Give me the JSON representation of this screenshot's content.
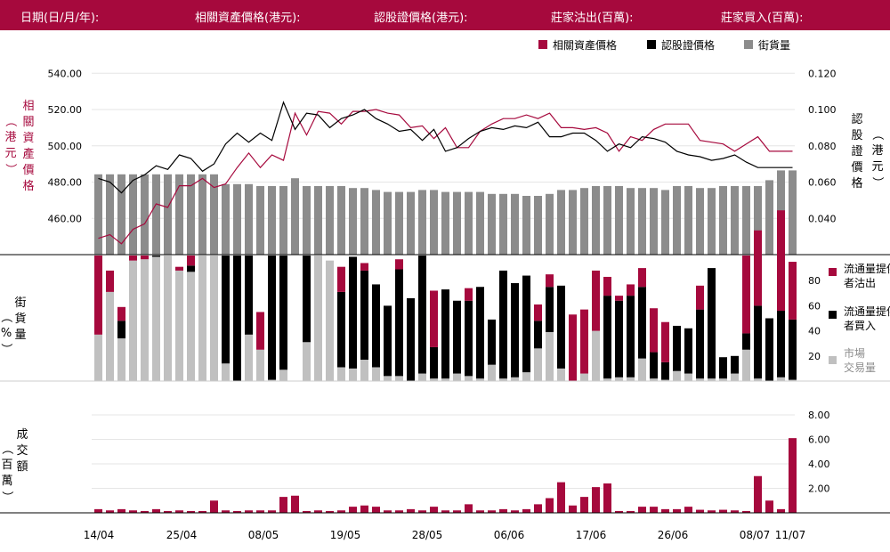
{
  "header": {
    "date_label": "日期(日/月/年):",
    "underlying_label": "相關資產價格(港元):",
    "warrant_label": "認股證價格(港元):",
    "sell_label": "莊家沽出(百萬):",
    "buy_label": "莊家買入(百萬):"
  },
  "colors": {
    "brand": "#a6093d",
    "underlying": "#a6093d",
    "warrant": "#000000",
    "outstanding": "#8c8c8c",
    "sell": "#a6093d",
    "buy": "#000000",
    "market": "#c0c0c0",
    "turnover": "#a6093d"
  },
  "legend": {
    "underlying": "相關資產價格",
    "warrant": "認股證價格",
    "outstanding": "街貨量",
    "sell": "流通量提供者沽出",
    "buy": "流通量提供者買入",
    "market": "市場交易量"
  },
  "axes": {
    "left_price_title": "相關資產價格（港元）",
    "right_price_title": "認股證價格（港元）",
    "outstanding_title": "街貨量（%）",
    "turnover_title": "成交額（百萬）"
  },
  "chart_data": {
    "type": "line",
    "x_tick_labels": [
      "14/04",
      "25/04",
      "08/05",
      "19/05",
      "28/05",
      "06/06",
      "17/06",
      "26/06",
      "08/07",
      "11/07"
    ],
    "underlying": {
      "name": "相關資產價格",
      "ylim": [
        440,
        548
      ],
      "ticks": [
        "540.00",
        "520.00",
        "500.00",
        "480.00",
        "460.00"
      ],
      "values": [
        449,
        451,
        446,
        454,
        457,
        468,
        466,
        478,
        478,
        482,
        477,
        479,
        488,
        496,
        488,
        495,
        492,
        518,
        506,
        519,
        518,
        512,
        519,
        519,
        520,
        518,
        517,
        510,
        511,
        504,
        510,
        499,
        499,
        508,
        512,
        515,
        515,
        517,
        515,
        518,
        510,
        510,
        509,
        510,
        507,
        497,
        505,
        503,
        509,
        512,
        512,
        512,
        503,
        502,
        501,
        497,
        501,
        505,
        497,
        497,
        497
      ]
    },
    "warrant": {
      "name": "認股證價格",
      "ylim": [
        0.02,
        0.128
      ],
      "ticks": [
        "0.120",
        "0.100",
        "0.080",
        "0.060",
        "0.040"
      ],
      "values": [
        0.062,
        0.06,
        0.054,
        0.061,
        0.064,
        0.069,
        0.067,
        0.075,
        0.073,
        0.066,
        0.07,
        0.081,
        0.087,
        0.082,
        0.087,
        0.083,
        0.104,
        0.089,
        0.098,
        0.097,
        0.09,
        0.095,
        0.097,
        0.1,
        0.095,
        0.092,
        0.088,
        0.089,
        0.083,
        0.089,
        0.077,
        0.079,
        0.084,
        0.088,
        0.09,
        0.089,
        0.091,
        0.09,
        0.093,
        0.085,
        0.085,
        0.087,
        0.087,
        0.083,
        0.077,
        0.081,
        0.079,
        0.085,
        0.084,
        0.082,
        0.077,
        0.075,
        0.074,
        0.072,
        0.073,
        0.075,
        0.071,
        0.068,
        0.068,
        0.068,
        0.068
      ]
    },
    "outstanding": {
      "name": "街貨量",
      "ylim": [
        0,
        100
      ],
      "values": [
        41,
        41,
        41,
        41,
        41,
        41,
        41,
        41,
        41,
        41,
        41,
        36,
        36,
        36,
        35,
        35,
        35,
        39,
        35,
        35,
        35,
        35,
        34,
        34,
        33,
        32,
        32,
        32,
        33,
        33,
        32,
        32,
        32,
        32,
        31,
        31,
        31,
        30,
        30,
        31,
        33,
        33,
        34,
        35,
        35,
        35,
        34,
        34,
        34,
        33,
        35,
        35,
        34,
        34,
        35,
        35,
        35,
        35,
        38,
        43,
        43
      ]
    },
    "share": {
      "ylim": [
        0,
        100
      ],
      "ticks": [
        "80",
        "60",
        "40",
        "20"
      ],
      "sell": [
        63,
        17,
        11,
        4,
        3,
        0,
        0,
        3,
        8,
        0,
        0,
        0,
        0,
        0,
        30,
        0,
        0,
        0,
        0,
        0,
        0,
        20,
        0,
        6,
        0,
        0,
        8,
        0,
        0,
        45,
        0,
        0,
        10,
        0,
        0,
        0,
        0,
        0,
        13,
        10,
        0,
        53,
        51,
        48,
        15,
        4,
        9,
        15,
        35,
        32,
        0,
        0,
        19,
        0,
        0,
        0,
        62,
        60,
        0,
        80,
        46
      ],
      "buy": [
        0,
        0,
        14,
        0,
        0,
        1,
        0,
        0,
        5,
        0,
        0,
        86,
        100,
        63,
        0,
        99,
        91,
        0,
        69,
        0,
        0,
        60,
        89,
        71,
        66,
        56,
        85,
        66,
        94,
        25,
        71,
        58,
        60,
        73,
        36,
        86,
        75,
        77,
        22,
        36,
        66,
        0,
        0,
        0,
        66,
        61,
        65,
        57,
        21,
        14,
        36,
        36,
        55,
        88,
        17,
        14,
        13,
        58,
        50,
        53,
        48
      ],
      "market": [
        37,
        71,
        34,
        96,
        97,
        99,
        100,
        88,
        87,
        100,
        100,
        14,
        0,
        37,
        25,
        1,
        9,
        0,
        31,
        100,
        96,
        11,
        10,
        17,
        11,
        4,
        4,
        0,
        6,
        2,
        2,
        6,
        4,
        2,
        13,
        2,
        3,
        7,
        26,
        39,
        10,
        0,
        6,
        40,
        2,
        3,
        3,
        18,
        2,
        1,
        8,
        6,
        2,
        2,
        2,
        6,
        25,
        2,
        0,
        3,
        1
      ]
    },
    "turnover": {
      "name": "成交額",
      "ylim": [
        0,
        8.8
      ],
      "ticks": [
        "8.00",
        "6.00",
        "4.00",
        "2.00"
      ],
      "values": [
        0.3,
        0.2,
        0.3,
        0.2,
        0.15,
        0.3,
        0.15,
        0.2,
        0.15,
        0.15,
        1,
        0.2,
        0.15,
        0.2,
        0.2,
        0.2,
        1.3,
        1.4,
        0.15,
        0.2,
        0.15,
        0.2,
        0.5,
        0.6,
        0.5,
        0.2,
        0.2,
        0.3,
        0.2,
        0.5,
        0.2,
        0.2,
        0.7,
        0.2,
        0.2,
        0.3,
        0.2,
        0.3,
        0.7,
        1.2,
        2.5,
        0.6,
        1.3,
        2.1,
        2.4,
        0.15,
        0.15,
        0.5,
        0.5,
        0.3,
        0.3,
        0.5,
        0.25,
        0.2,
        0.25,
        0.2,
        0.15,
        3,
        1,
        0.3,
        6.1
      ]
    }
  }
}
